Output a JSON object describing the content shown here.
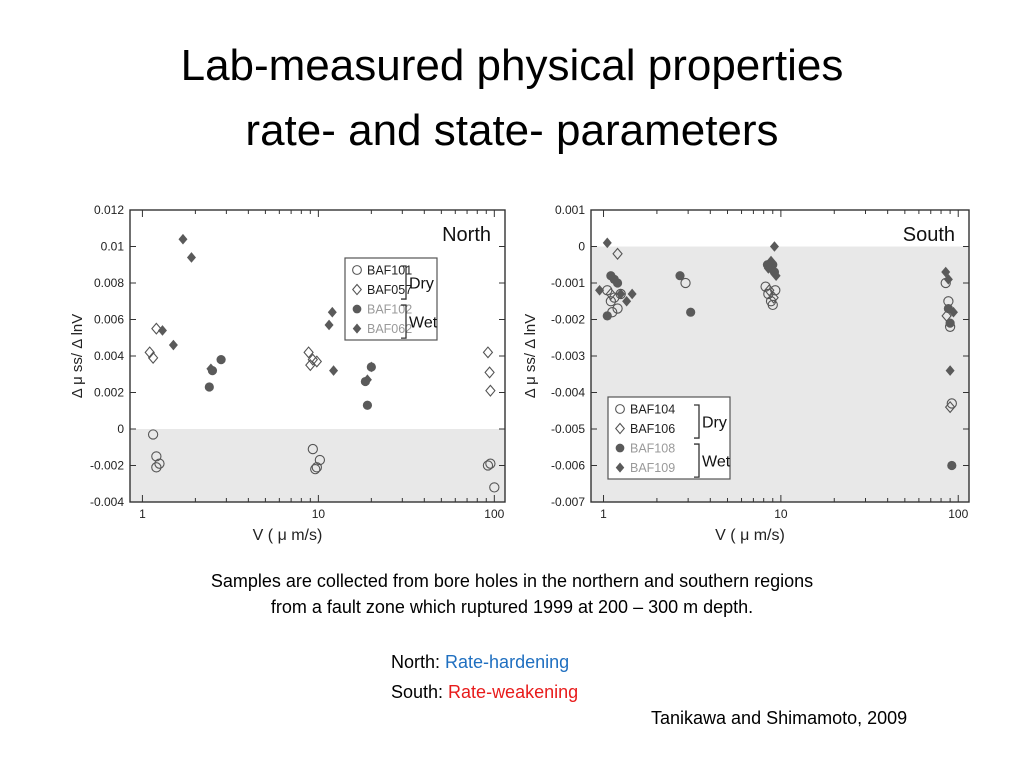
{
  "slide": {
    "title_line1": "Lab-measured physical properties",
    "title_line2": "rate- and state- parameters",
    "caption_line1": "Samples are collected from bore holes in the northern and southern regions",
    "caption_line2": "from a fault zone  which ruptured 1999 at 200 – 300 m depth.",
    "north_label": "North: ",
    "north_value": "Rate-hardening",
    "south_label": "South: ",
    "south_value": "Rate-weakening",
    "reference": "Tanikawa and Shimamoto, 2009"
  },
  "chart_data": [
    {
      "type": "scatter",
      "title": "North",
      "xlabel": "V ( μ m/s)",
      "ylabel": "Δ μ ss/ Δ lnV",
      "x_scale": "log",
      "xlim": [
        0.85,
        115
      ],
      "ylim": [
        -0.004,
        0.012
      ],
      "x_ticks": [
        "1",
        "10",
        "100"
      ],
      "y_ticks": [
        "0.012",
        "0.01",
        "0.008",
        "0.006",
        "0.004",
        "0.002",
        "0",
        "-0.002",
        "-0.004"
      ],
      "shaded_region": "negative values",
      "legend_position": "upper-right",
      "legend_groups": [
        {
          "label": "Dry",
          "series": [
            "BAF101",
            "BAF057"
          ]
        },
        {
          "label": "Wet",
          "series": [
            "BAF102",
            "BAF062"
          ]
        }
      ],
      "series": [
        {
          "name": "BAF101",
          "marker": "open-circle",
          "color": "#555555",
          "group": "Dry",
          "x": [
            1.15,
            1.2,
            1.25,
            1.2,
            9.3,
            9.8,
            10.2,
            9.6,
            92,
            95,
            100
          ],
          "y": [
            -0.0003,
            -0.0015,
            -0.0019,
            -0.0021,
            -0.0011,
            -0.0021,
            -0.0017,
            -0.0022,
            -0.002,
            -0.0019,
            -0.0032
          ]
        },
        {
          "name": "BAF057",
          "marker": "open-diamond",
          "color": "#555555",
          "group": "Dry",
          "x": [
            1.1,
            1.15,
            1.2,
            8.8,
            9.0,
            9.3,
            9.8,
            92,
            94,
            95
          ],
          "y": [
            0.0042,
            0.0039,
            0.0055,
            0.0042,
            0.0035,
            0.0038,
            0.0037,
            0.0042,
            0.0031,
            0.0021
          ]
        },
        {
          "name": "BAF102",
          "marker": "filled-circle",
          "color": "#5a5a5a",
          "group": "Wet",
          "x": [
            2.4,
            2.5,
            2.8,
            18.5,
            19,
            20
          ],
          "y": [
            0.0023,
            0.0032,
            0.0038,
            0.0026,
            0.0013,
            0.0034
          ]
        },
        {
          "name": "BAF062",
          "marker": "filled-diamond",
          "color": "#5a5a5a",
          "group": "Wet",
          "x": [
            1.3,
            1.5,
            1.7,
            1.9,
            2.45,
            11.5,
            12.0,
            12.2,
            19,
            20
          ],
          "y": [
            0.0054,
            0.0046,
            0.0104,
            0.0094,
            0.0033,
            0.0057,
            0.0064,
            0.0032,
            0.0027,
            0.0034
          ]
        }
      ]
    },
    {
      "type": "scatter",
      "title": "South",
      "xlabel": "V ( μ m/s)",
      "ylabel": "Δ μ ss/ Δ lnV",
      "x_scale": "log",
      "xlim": [
        0.85,
        115
      ],
      "ylim": [
        -0.007,
        0.001
      ],
      "x_ticks": [
        "1",
        "10",
        "100"
      ],
      "y_ticks": [
        "0.001",
        "0",
        "-0.001",
        "-0.002",
        "-0.003",
        "-0.004",
        "-0.005",
        "-0.006",
        "-0.007"
      ],
      "shaded_region": "negative values",
      "legend_position": "lower-left",
      "legend_groups": [
        {
          "label": "Dry",
          "series": [
            "BAF104",
            "BAF106"
          ]
        },
        {
          "label": "Wet",
          "series": [
            "BAF108",
            "BAF109"
          ]
        }
      ],
      "series": [
        {
          "name": "BAF104",
          "marker": "open-circle",
          "color": "#555555",
          "group": "Dry",
          "x": [
            1.05,
            1.1,
            1.12,
            1.15,
            1.2,
            1.25,
            2.9,
            8.2,
            8.5,
            8.8,
            9.0,
            9.3,
            85,
            88,
            90,
            92
          ],
          "y": [
            -0.0012,
            -0.0015,
            -0.0018,
            -0.0014,
            -0.0017,
            -0.0013,
            -0.001,
            -0.0011,
            -0.0013,
            -0.0015,
            -0.0016,
            -0.0012,
            -0.001,
            -0.0015,
            -0.0022,
            -0.0043
          ]
        },
        {
          "name": "BAF106",
          "marker": "open-diamond",
          "color": "#555555",
          "group": "Dry",
          "x": [
            1.2,
            1.1,
            8.6,
            9.1,
            86,
            90
          ],
          "y": [
            -0.0002,
            -0.0013,
            -0.0012,
            -0.0014,
            -0.0019,
            -0.0044
          ]
        },
        {
          "name": "BAF108",
          "marker": "filled-circle",
          "color": "#5a5a5a",
          "group": "Wet",
          "x": [
            1.1,
            1.15,
            1.2,
            1.05,
            2.7,
            3.1,
            8.4,
            8.8,
            9.0,
            9.2,
            88,
            90,
            92
          ],
          "y": [
            -0.0008,
            -0.0009,
            -0.001,
            -0.0019,
            -0.0008,
            -0.0018,
            -0.0005,
            -0.0006,
            -0.0005,
            -0.0007,
            -0.0017,
            -0.0021,
            -0.006
          ]
        },
        {
          "name": "BAF109",
          "marker": "filled-diamond",
          "color": "#5a5a5a",
          "group": "Wet",
          "x": [
            0.95,
            1.05,
            1.25,
            1.35,
            1.45,
            8.5,
            8.8,
            9.2,
            9.4,
            85,
            88,
            90,
            94
          ],
          "y": [
            -0.0012,
            0.0001,
            -0.0013,
            -0.0015,
            -0.0013,
            -0.0006,
            -0.0004,
            0.0,
            -0.0008,
            -0.0007,
            -0.0009,
            -0.0034,
            -0.0018
          ]
        }
      ]
    }
  ]
}
